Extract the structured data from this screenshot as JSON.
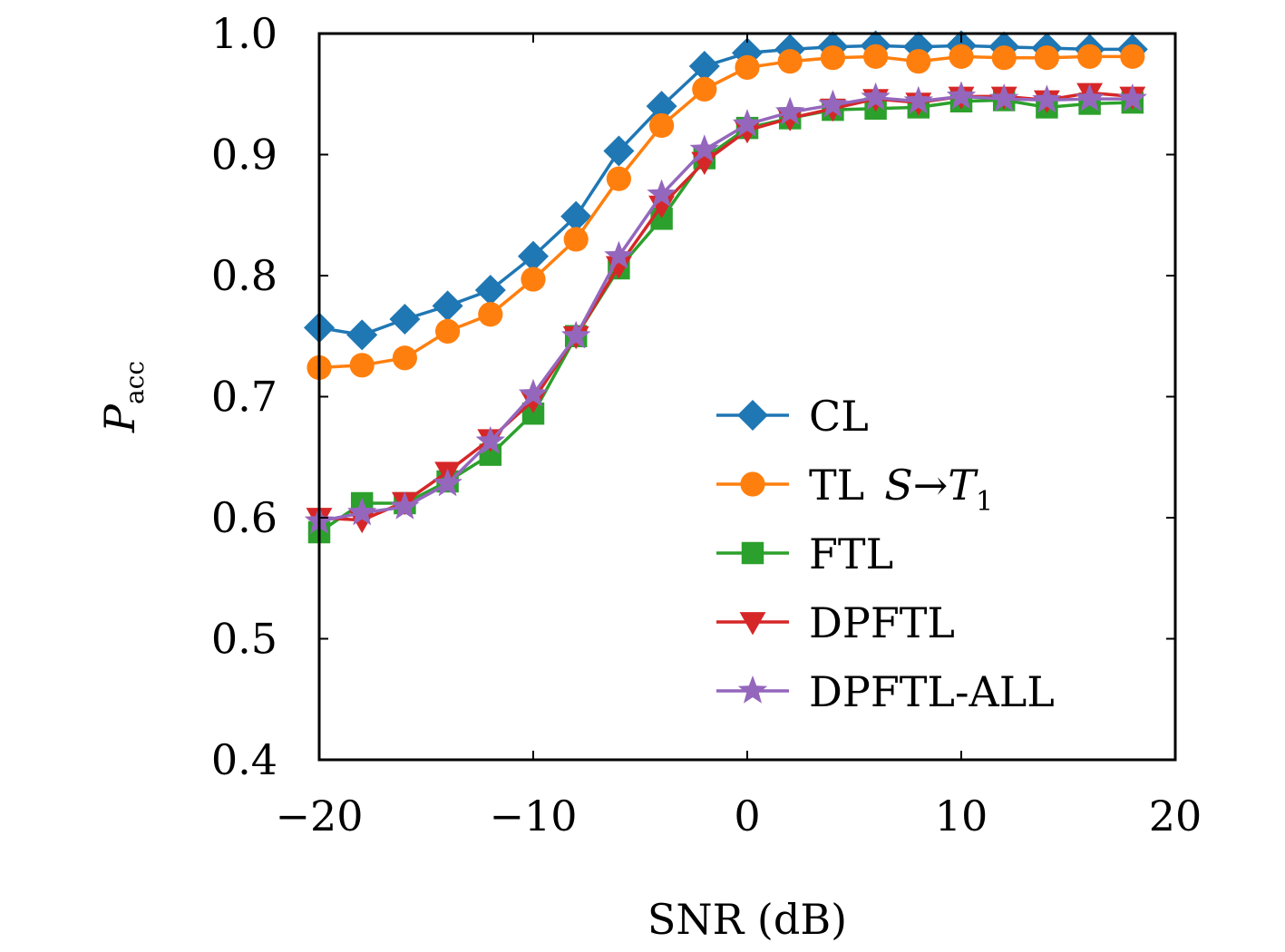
{
  "chart_data": {
    "type": "line",
    "title": "",
    "xlabel": "SNR (dB)",
    "ylabel": "P",
    "ylabel_subscript": "acc",
    "xlim": [
      -20,
      20
    ],
    "ylim": [
      0.4,
      1.0
    ],
    "xticks": [
      -20,
      -10,
      0,
      10,
      20
    ],
    "xtick_labels": [
      "−20",
      "−10",
      "0",
      "10",
      "20"
    ],
    "yticks": [
      0.4,
      0.5,
      0.6,
      0.7,
      0.8,
      0.9,
      1.0
    ],
    "ytick_labels": [
      "0.4",
      "0.5",
      "0.6",
      "0.7",
      "0.8",
      "0.9",
      "1.0"
    ],
    "grid": false,
    "legend_position": "lower-right",
    "x": [
      -20,
      -18,
      -16,
      -14,
      -12,
      -10,
      -8,
      -6,
      -4,
      -2,
      0,
      2,
      4,
      6,
      8,
      10,
      12,
      14,
      16,
      18
    ],
    "series": [
      {
        "name": "CL",
        "legend_label": "CL",
        "color": "#1f77b4",
        "marker": "diamond",
        "values": [
          0.757,
          0.751,
          0.764,
          0.775,
          0.788,
          0.816,
          0.849,
          0.903,
          0.94,
          0.973,
          0.984,
          0.987,
          0.989,
          0.99,
          0.989,
          0.99,
          0.989,
          0.988,
          0.987,
          0.987
        ]
      },
      {
        "name": "TL S→T1",
        "legend_label": "TL",
        "legend_math_main": "S→T",
        "legend_math_sub": "1",
        "color": "#ff7f0e",
        "marker": "circle",
        "values": [
          0.724,
          0.726,
          0.732,
          0.754,
          0.768,
          0.797,
          0.83,
          0.88,
          0.924,
          0.954,
          0.972,
          0.977,
          0.98,
          0.981,
          0.977,
          0.981,
          0.98,
          0.98,
          0.981,
          0.981
        ]
      },
      {
        "name": "FTL",
        "legend_label": "FTL",
        "color": "#2ca02c",
        "marker": "square",
        "values": [
          0.588,
          0.612,
          0.612,
          0.63,
          0.652,
          0.686,
          0.75,
          0.806,
          0.847,
          0.897,
          0.922,
          0.93,
          0.937,
          0.938,
          0.939,
          0.944,
          0.945,
          0.939,
          0.942,
          0.943
        ]
      },
      {
        "name": "DPFTL",
        "legend_label": "DPFTL",
        "color": "#d62728",
        "marker": "triangle-down",
        "values": [
          0.6,
          0.598,
          0.613,
          0.638,
          0.665,
          0.697,
          0.75,
          0.808,
          0.858,
          0.894,
          0.92,
          0.93,
          0.938,
          0.946,
          0.943,
          0.948,
          0.948,
          0.945,
          0.951,
          0.948
        ]
      },
      {
        "name": "DPFTL-ALL",
        "legend_label": "DPFTL-ALL",
        "color": "#9467bd",
        "marker": "star",
        "values": [
          0.597,
          0.604,
          0.609,
          0.628,
          0.663,
          0.702,
          0.75,
          0.816,
          0.867,
          0.904,
          0.925,
          0.935,
          0.941,
          0.947,
          0.944,
          0.948,
          0.946,
          0.945,
          0.946,
          0.946
        ]
      }
    ]
  }
}
